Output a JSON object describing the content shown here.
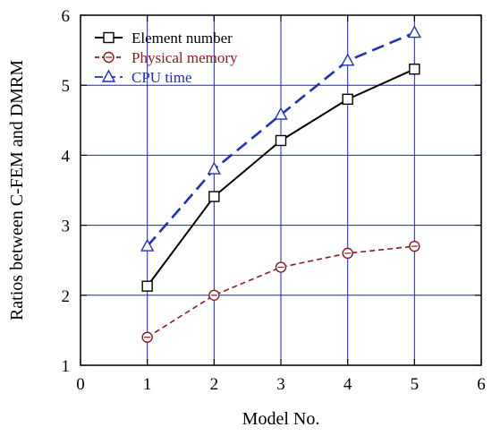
{
  "chart_data": {
    "type": "line",
    "title": "",
    "xlabel": "Model No.",
    "ylabel": "Ratios between C-FEM and DMRM",
    "xlim": [
      0,
      6
    ],
    "ylim": [
      1,
      6
    ],
    "xticks": [
      0,
      1,
      2,
      3,
      4,
      5,
      6
    ],
    "yticks": [
      1,
      2,
      3,
      4,
      5,
      6
    ],
    "grid": true,
    "legend_position": "top-left",
    "x": [
      1,
      2,
      3,
      4,
      5
    ],
    "series": [
      {
        "name": "Element number",
        "values": [
          2.13,
          3.41,
          4.21,
          4.8,
          5.23
        ],
        "color": "#000000",
        "dash": "solid",
        "marker": "square"
      },
      {
        "name": "Physical memory",
        "values": [
          1.4,
          2.0,
          2.4,
          2.6,
          2.7
        ],
        "color": "#8b1a1a",
        "dash": "dashed",
        "marker": "circle-minus"
      },
      {
        "name": "CPU time",
        "values": [
          2.7,
          3.8,
          4.58,
          5.35,
          5.75
        ],
        "color": "#1f2fbf",
        "dash": "dashed",
        "marker": "triangle"
      }
    ],
    "colors": {
      "grid": "#1a1aff",
      "axis": "#000000"
    }
  }
}
